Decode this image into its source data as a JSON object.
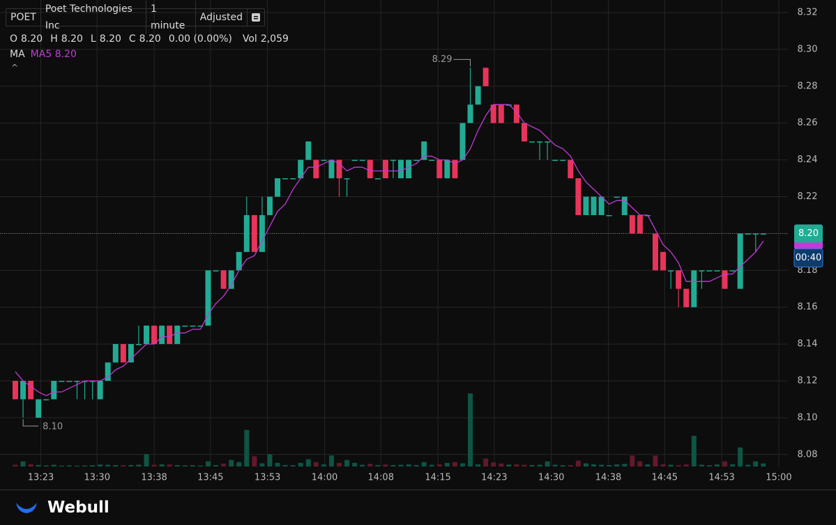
{
  "header": {
    "symbol": "POET",
    "company": "Poet Technologies Inc",
    "interval": "1 minute",
    "adjustment": "Adjusted",
    "ohlc": [
      {
        "key": "O",
        "value": "8.20"
      },
      {
        "key": "H",
        "value": "8.20"
      },
      {
        "key": "L",
        "value": "8.20"
      },
      {
        "key": "C",
        "value": "8.20"
      }
    ],
    "change": "0.00 (0.00%)",
    "vol_key": "Vol",
    "vol_value": "2,059",
    "ma_key": "MA",
    "ma_last": "8.20",
    "last_price": "8.20",
    "countdown": "00:40"
  },
  "chart_data": {
    "type": "candlestick",
    "up_color": "#22ab94",
    "down_color": "#e8345a",
    "grid": true,
    "open": [
      8.12,
      8.11,
      8.12,
      8.1,
      8.11,
      8.11,
      8.12,
      8.12,
      8.12,
      8.12,
      8.12,
      8.11,
      8.12,
      8.13,
      8.14,
      8.13,
      8.14,
      8.14,
      8.15,
      8.14,
      8.15,
      8.14,
      8.15,
      8.15,
      8.15,
      8.15,
      8.18,
      8.18,
      8.17,
      8.18,
      8.19,
      8.21,
      8.19,
      8.21,
      8.22,
      8.23,
      8.23,
      8.23,
      8.24,
      8.24,
      8.24,
      8.23,
      8.24,
      8.23,
      8.24,
      8.24,
      8.24,
      8.23,
      8.24,
      8.24,
      8.23,
      8.23,
      8.24,
      8.24,
      8.24,
      8.24,
      8.23,
      8.24,
      8.24,
      8.26,
      8.27,
      8.29,
      8.27,
      8.27,
      8.27,
      8.27,
      8.26,
      8.25,
      8.25,
      8.25,
      8.24,
      8.24,
      8.24,
      8.23,
      8.21,
      8.21,
      8.21,
      8.21,
      8.22,
      8.21,
      8.21,
      8.21,
      8.21,
      8.2,
      8.19,
      8.18,
      8.18,
      8.17,
      8.16,
      8.18,
      8.18,
      8.18,
      8.18,
      8.18,
      8.17,
      8.2,
      8.2,
      8.2
    ],
    "high": [
      8.12,
      8.12,
      8.12,
      8.11,
      8.11,
      8.12,
      8.12,
      8.12,
      8.12,
      8.12,
      8.12,
      8.12,
      8.13,
      8.14,
      8.14,
      8.14,
      8.15,
      8.15,
      8.15,
      8.15,
      8.15,
      8.15,
      8.15,
      8.15,
      8.15,
      8.18,
      8.18,
      8.18,
      8.18,
      8.19,
      8.22,
      8.21,
      8.22,
      8.22,
      8.23,
      8.23,
      8.23,
      8.24,
      8.25,
      8.24,
      8.24,
      8.24,
      8.24,
      8.23,
      8.24,
      8.24,
      8.24,
      8.23,
      8.24,
      8.24,
      8.24,
      8.24,
      8.24,
      8.25,
      8.24,
      8.24,
      8.24,
      8.24,
      8.26,
      8.29,
      8.28,
      8.29,
      8.27,
      8.27,
      8.27,
      8.27,
      8.26,
      8.25,
      8.25,
      8.25,
      8.24,
      8.24,
      8.24,
      8.23,
      8.22,
      8.22,
      8.22,
      8.21,
      8.22,
      8.22,
      8.21,
      8.21,
      8.21,
      8.2,
      8.19,
      8.18,
      8.18,
      8.17,
      8.18,
      8.18,
      8.18,
      8.18,
      8.18,
      8.18,
      8.2,
      8.2,
      8.2,
      8.2
    ],
    "low": [
      8.11,
      8.1,
      8.11,
      8.1,
      8.11,
      8.11,
      8.12,
      8.12,
      8.11,
      8.11,
      8.11,
      8.11,
      8.12,
      8.13,
      8.13,
      8.13,
      8.14,
      8.14,
      8.14,
      8.14,
      8.14,
      8.14,
      8.15,
      8.15,
      8.15,
      8.15,
      8.18,
      8.17,
      8.17,
      8.18,
      8.19,
      8.19,
      8.19,
      8.21,
      8.22,
      8.23,
      8.23,
      8.23,
      8.24,
      8.23,
      8.24,
      8.23,
      8.22,
      8.22,
      8.24,
      8.24,
      8.23,
      8.23,
      8.23,
      8.23,
      8.23,
      8.23,
      8.24,
      8.24,
      8.24,
      8.23,
      8.23,
      8.23,
      8.24,
      8.26,
      8.27,
      8.28,
      8.26,
      8.26,
      8.27,
      8.26,
      8.25,
      8.25,
      8.24,
      8.24,
      8.24,
      8.24,
      8.23,
      8.21,
      8.21,
      8.21,
      8.21,
      8.21,
      8.22,
      8.21,
      8.2,
      8.2,
      8.21,
      8.18,
      8.18,
      8.17,
      8.16,
      8.16,
      8.16,
      8.17,
      8.18,
      8.18,
      8.17,
      8.18,
      8.17,
      8.2,
      8.19,
      8.2
    ],
    "close": [
      8.11,
      8.12,
      8.11,
      8.11,
      8.11,
      8.12,
      8.12,
      8.12,
      8.12,
      8.12,
      8.12,
      8.12,
      8.13,
      8.14,
      8.13,
      8.14,
      8.14,
      8.15,
      8.14,
      8.15,
      8.14,
      8.15,
      8.15,
      8.15,
      8.15,
      8.18,
      8.18,
      8.17,
      8.18,
      8.19,
      8.21,
      8.19,
      8.21,
      8.22,
      8.23,
      8.23,
      8.23,
      8.24,
      8.25,
      8.23,
      8.24,
      8.24,
      8.23,
      8.23,
      8.24,
      8.24,
      8.23,
      8.23,
      8.23,
      8.24,
      8.24,
      8.24,
      8.24,
      8.25,
      8.24,
      8.23,
      8.24,
      8.23,
      8.26,
      8.27,
      8.28,
      8.28,
      8.26,
      8.26,
      8.27,
      8.26,
      8.25,
      8.25,
      8.25,
      8.25,
      8.24,
      8.24,
      8.23,
      8.21,
      8.22,
      8.22,
      8.22,
      8.21,
      8.22,
      8.22,
      8.2,
      8.2,
      8.21,
      8.18,
      8.18,
      8.18,
      8.17,
      8.16,
      8.18,
      8.18,
      8.18,
      8.18,
      8.17,
      8.18,
      8.2,
      8.2,
      8.2,
      8.2
    ],
    "volume": [
      1200,
      3500,
      1500,
      1000,
      800,
      1200,
      600,
      800,
      600,
      700,
      900,
      1400,
      1200,
      1000,
      900,
      1000,
      1300,
      8500,
      1200,
      1500,
      1400,
      1000,
      800,
      900,
      700,
      3500,
      1000,
      2000,
      4500,
      3000,
      25000,
      7000,
      2200,
      8500,
      2500,
      1000,
      900,
      2500,
      5000,
      3000,
      1500,
      7500,
      2500,
      4500,
      2500,
      1200,
      1800,
      1000,
      1400,
      1000,
      1200,
      1500,
      1000,
      3000,
      1200,
      1500,
      2500,
      3000,
      2200,
      50000,
      1500,
      5500,
      2800,
      2000,
      1300,
      1500,
      1200,
      1000,
      1200,
      3500,
      1200,
      900,
      1000,
      4000,
      2200,
      1500,
      1200,
      1000,
      1500,
      1800,
      7500,
      3500,
      1500,
      7500,
      1500,
      1200,
      900,
      1500,
      21000,
      1200,
      900,
      1400,
      3500,
      1500,
      13000,
      1200,
      3500,
      2059
    ],
    "ma": {
      "name": "MA5",
      "color": "#c23ad8",
      "values": [
        8.125,
        8.12,
        8.117,
        8.114,
        8.112,
        8.114,
        8.114,
        8.116,
        8.118,
        8.12,
        8.12,
        8.12,
        8.122,
        8.126,
        8.128,
        8.132,
        8.136,
        8.14,
        8.14,
        8.144,
        8.144,
        8.146,
        8.146,
        8.148,
        8.148,
        8.156,
        8.162,
        8.166,
        8.172,
        8.18,
        8.186,
        8.188,
        8.196,
        8.204,
        8.212,
        8.216,
        8.224,
        8.23,
        8.236,
        8.236,
        8.238,
        8.24,
        8.238,
        8.234,
        8.236,
        8.236,
        8.234,
        8.234,
        8.234,
        8.234,
        8.234,
        8.236,
        8.238,
        8.242,
        8.242,
        8.24,
        8.24,
        8.238,
        8.24,
        8.246,
        8.256,
        8.264,
        8.27,
        8.27,
        8.27,
        8.266,
        8.26,
        8.258,
        8.256,
        8.252,
        8.248,
        8.246,
        8.242,
        8.234,
        8.228,
        8.224,
        8.22,
        8.216,
        8.218,
        8.218,
        8.214,
        8.21,
        8.21,
        8.202,
        8.194,
        8.19,
        8.184,
        8.174,
        8.174,
        8.174,
        8.174,
        8.176,
        8.178,
        8.178,
        8.182,
        8.186,
        8.19,
        8.196
      ]
    },
    "ylim": [
      8.0735,
      8.3268
    ],
    "yticks": [
      8.08,
      {
        "value": 8.1,
        "label": "8.10"
      },
      8.12,
      8.14,
      8.16,
      8.18,
      {
        "value": 8.2,
        "label": "8.20"
      },
      8.22,
      8.24,
      8.26,
      8.28,
      {
        "value": 8.3,
        "label": "8.30"
      },
      8.32
    ],
    "xticks": [
      {
        "value": 3.3,
        "label": "13:23"
      },
      {
        "value": 10.6,
        "label": "13:30"
      },
      {
        "value": 18.0,
        "label": "13:38"
      },
      {
        "value": 25.3,
        "label": "13:45"
      },
      {
        "value": 32.7,
        "label": "13:53"
      },
      {
        "value": 40.1,
        "label": "14:00"
      },
      {
        "value": 47.4,
        "label": "14:08"
      },
      {
        "value": 54.8,
        "label": "14:15"
      },
      {
        "value": 62.1,
        "label": "14:23"
      },
      {
        "value": 69.5,
        "label": "14:30"
      },
      {
        "value": 76.9,
        "label": "14:38"
      },
      {
        "value": 84.2,
        "label": "14:45"
      },
      {
        "value": 91.6,
        "label": "14:53"
      },
      {
        "value": 99.0,
        "label": "15:00"
      }
    ],
    "annotations": [
      {
        "label": "8.29"
      },
      {
        "label": "8.10"
      }
    ]
  },
  "footer": {
    "brand": "Webull"
  }
}
